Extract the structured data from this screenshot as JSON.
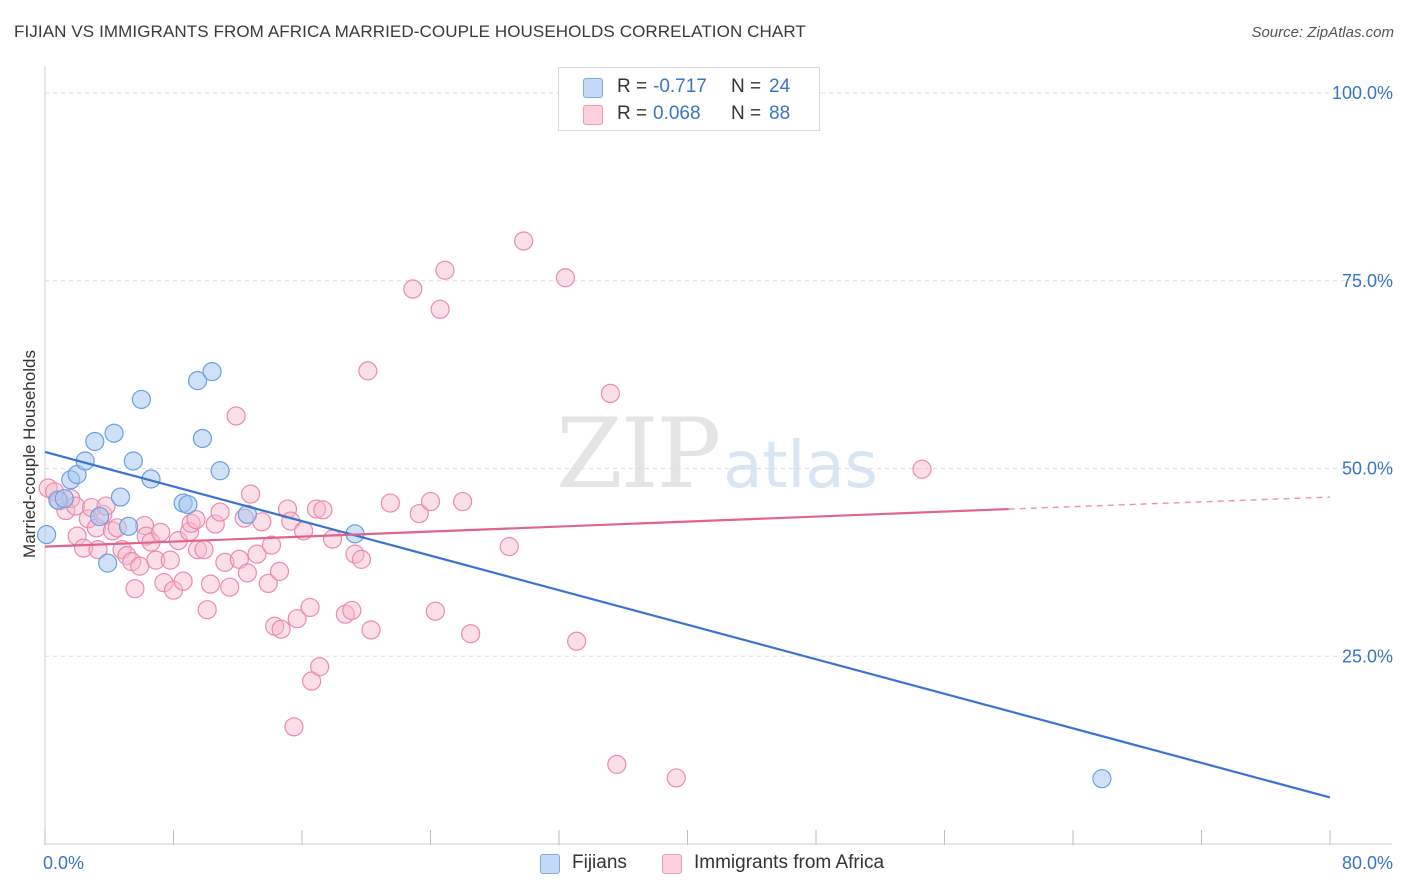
{
  "header": {
    "title": "FIJIAN VS IMMIGRANTS FROM AFRICA MARRIED-COUPLE HOUSEHOLDS CORRELATION CHART",
    "source": "Source: ZipAtlas.com"
  },
  "watermark": {
    "zip": "ZIP",
    "atlas": "atlas"
  },
  "legend_top": [
    {
      "r_label": "R =",
      "r_value": "-0.717",
      "n_label": "N =",
      "n_value": "24"
    },
    {
      "r_label": "R =",
      "r_value": "0.068",
      "n_label": "N =",
      "n_value": "88"
    }
  ],
  "legend_bottom": [
    "Fijians",
    "Immigrants from Africa"
  ],
  "colors": {
    "fijians_fill": "#a8c8f0",
    "fijians_stroke": "#6d9ee0",
    "fijians_line": "#3a74d0",
    "africa_fill": "#f7b8cc",
    "africa_stroke": "#ec8aaa",
    "africa_line": "#e0648e",
    "tick_label": "#3a74c6",
    "grid": "#dddddd"
  },
  "chart_data": {
    "type": "scatter",
    "title": "FIJIAN VS IMMIGRANTS FROM AFRICA MARRIED-COUPLE HOUSEHOLDS CORRELATION CHART",
    "xlabel": "",
    "ylabel": "Married-couple Households",
    "xlim": [
      0,
      80
    ],
    "ylim": [
      0,
      102
    ],
    "x_tick_labels": [
      "0.0%",
      "80.0%"
    ],
    "y_ticks": [
      25,
      50,
      75,
      100
    ],
    "y_tick_labels": [
      "25.0%",
      "50.0%",
      "75.0%",
      "100.0%"
    ],
    "grid": true,
    "legend_position": "top-center",
    "series": [
      {
        "name": "Fijians",
        "R": -0.717,
        "N": 24,
        "trend": {
          "x": [
            0,
            80
          ],
          "y": [
            52.2,
            6.2
          ],
          "dashed_from_x": null
        },
        "points": [
          [
            0.1,
            41.2
          ],
          [
            0.8,
            45.8
          ],
          [
            1.2,
            46.0
          ],
          [
            1.6,
            48.5
          ],
          [
            2.0,
            49.2
          ],
          [
            2.5,
            51.0
          ],
          [
            3.1,
            53.6
          ],
          [
            3.4,
            43.6
          ],
          [
            3.9,
            37.4
          ],
          [
            4.3,
            54.7
          ],
          [
            4.7,
            46.2
          ],
          [
            5.2,
            42.3
          ],
          [
            5.5,
            51.0
          ],
          [
            6.0,
            59.2
          ],
          [
            6.6,
            48.6
          ],
          [
            8.6,
            45.4
          ],
          [
            8.9,
            45.2
          ],
          [
            9.5,
            61.7
          ],
          [
            9.8,
            54.0
          ],
          [
            10.4,
            62.9
          ],
          [
            10.9,
            49.7
          ],
          [
            12.6,
            43.9
          ],
          [
            19.3,
            41.3
          ],
          [
            65.8,
            8.7
          ]
        ]
      },
      {
        "name": "Immigrants from Africa",
        "R": 0.068,
        "N": 88,
        "trend": {
          "x": [
            0,
            60
          ],
          "y": [
            39.6,
            44.6
          ],
          "dashed_from_x": 60,
          "dashed_to": [
            80,
            46.2
          ]
        },
        "points": [
          [
            0.2,
            47.4
          ],
          [
            0.6,
            46.9
          ],
          [
            0.9,
            45.7
          ],
          [
            1.3,
            44.4
          ],
          [
            1.6,
            46.0
          ],
          [
            1.9,
            45.0
          ],
          [
            2.0,
            41.0
          ],
          [
            2.4,
            39.4
          ],
          [
            2.7,
            43.3
          ],
          [
            2.9,
            44.8
          ],
          [
            3.2,
            42.1
          ],
          [
            3.3,
            39.2
          ],
          [
            3.6,
            43.9
          ],
          [
            3.8,
            45.0
          ],
          [
            4.2,
            41.7
          ],
          [
            4.5,
            42.1
          ],
          [
            4.8,
            39.2
          ],
          [
            5.1,
            38.4
          ],
          [
            5.4,
            37.6
          ],
          [
            5.6,
            34.0
          ],
          [
            5.9,
            37.0
          ],
          [
            6.2,
            42.4
          ],
          [
            6.3,
            41.0
          ],
          [
            6.6,
            40.2
          ],
          [
            6.9,
            37.8
          ],
          [
            7.2,
            41.5
          ],
          [
            7.4,
            34.8
          ],
          [
            7.8,
            37.8
          ],
          [
            8.0,
            33.8
          ],
          [
            8.3,
            40.4
          ],
          [
            8.6,
            35.0
          ],
          [
            9.0,
            41.6
          ],
          [
            9.1,
            42.7
          ],
          [
            9.4,
            43.2
          ],
          [
            9.5,
            39.2
          ],
          [
            9.9,
            39.2
          ],
          [
            10.1,
            31.2
          ],
          [
            10.3,
            34.6
          ],
          [
            10.6,
            42.6
          ],
          [
            10.9,
            44.2
          ],
          [
            11.2,
            37.5
          ],
          [
            11.5,
            34.2
          ],
          [
            11.9,
            57.0
          ],
          [
            12.1,
            37.9
          ],
          [
            12.4,
            43.4
          ],
          [
            12.6,
            36.1
          ],
          [
            12.8,
            46.6
          ],
          [
            13.2,
            38.6
          ],
          [
            13.5,
            42.9
          ],
          [
            13.9,
            34.7
          ],
          [
            14.1,
            39.8
          ],
          [
            14.3,
            29.0
          ],
          [
            14.6,
            36.3
          ],
          [
            14.7,
            28.6
          ],
          [
            15.1,
            44.6
          ],
          [
            15.3,
            43.0
          ],
          [
            15.7,
            30.0
          ],
          [
            16.1,
            41.7
          ],
          [
            16.5,
            31.5
          ],
          [
            16.6,
            21.7
          ],
          [
            16.9,
            44.6
          ],
          [
            17.1,
            23.6
          ],
          [
            17.3,
            44.5
          ],
          [
            17.9,
            40.6
          ],
          [
            18.7,
            30.6
          ],
          [
            19.1,
            31.1
          ],
          [
            19.3,
            38.6
          ],
          [
            19.7,
            37.9
          ],
          [
            20.1,
            63.0
          ],
          [
            20.3,
            28.5
          ],
          [
            21.5,
            45.4
          ],
          [
            22.9,
            73.9
          ],
          [
            23.3,
            44.0
          ],
          [
            24.0,
            45.6
          ],
          [
            24.3,
            31.0
          ],
          [
            24.6,
            71.2
          ],
          [
            24.9,
            76.4
          ],
          [
            26.0,
            45.6
          ],
          [
            26.5,
            28.0
          ],
          [
            28.9,
            39.6
          ],
          [
            29.8,
            80.3
          ],
          [
            32.4,
            75.4
          ],
          [
            33.1,
            27.0
          ],
          [
            35.2,
            60.0
          ],
          [
            35.6,
            10.6
          ],
          [
            39.3,
            8.8
          ],
          [
            54.6,
            49.9
          ],
          [
            15.5,
            15.6
          ]
        ]
      }
    ]
  }
}
